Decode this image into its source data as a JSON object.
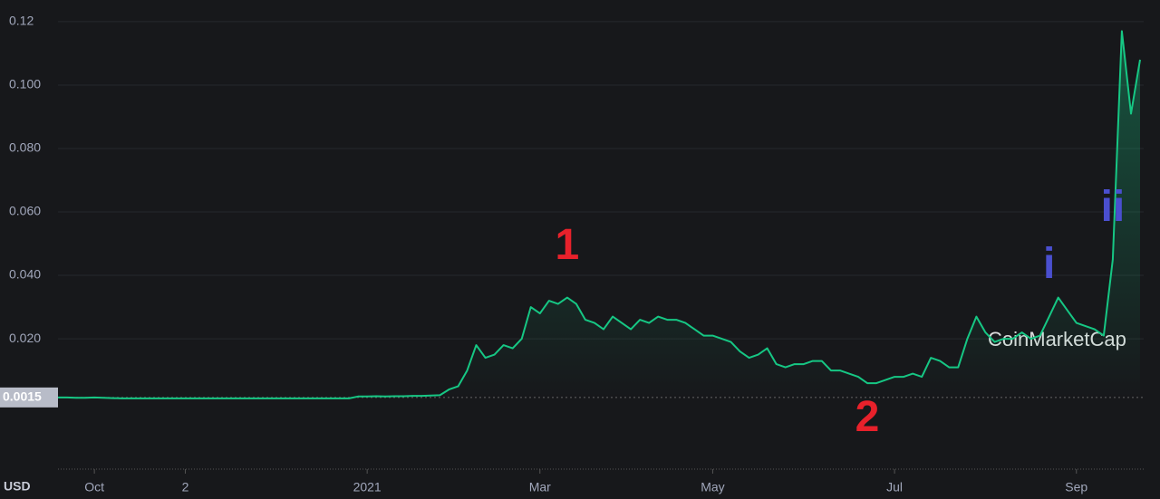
{
  "chart_data": {
    "type": "line",
    "categories": [
      null,
      null,
      null,
      null,
      "Oct",
      null,
      null,
      null,
      null,
      null,
      null,
      null,
      null,
      null,
      "2",
      null,
      null,
      null,
      null,
      null,
      null,
      null,
      null,
      null,
      null,
      null,
      null,
      null,
      null,
      null,
      null,
      null,
      null,
      null,
      "2021",
      null,
      null,
      null,
      null,
      null,
      null,
      null,
      null,
      null,
      null,
      null,
      null,
      null,
      null,
      null,
      null,
      null,
      null,
      "Mar",
      null,
      null,
      null,
      null,
      null,
      null,
      null,
      null,
      null,
      null,
      null,
      null,
      null,
      null,
      null,
      null,
      null,
      null,
      "May",
      null,
      null,
      null,
      null,
      null,
      null,
      null,
      null,
      null,
      null,
      null,
      null,
      null,
      null,
      null,
      null,
      null,
      null,
      null,
      "Jul",
      null,
      null,
      null,
      null,
      null,
      null,
      null,
      null,
      null,
      null,
      null,
      null,
      null,
      null,
      null,
      null,
      null,
      null,
      null,
      "Sep",
      null,
      null,
      null,
      null,
      null,
      null,
      null
    ],
    "values": [
      0.0015,
      0.0015,
      0.0014,
      0.0014,
      0.0015,
      0.0014,
      0.0013,
      0.0012,
      0.0012,
      0.0012,
      0.0012,
      0.0012,
      0.0012,
      0.0012,
      0.0012,
      0.0012,
      0.0012,
      0.0012,
      0.0012,
      0.0012,
      0.0012,
      0.0012,
      0.0012,
      0.0012,
      0.0012,
      0.0012,
      0.0012,
      0.0012,
      0.0012,
      0.0012,
      0.0012,
      0.0012,
      0.0012,
      0.0018,
      0.0018,
      0.0019,
      0.0018,
      0.0019,
      0.0019,
      0.002,
      0.002,
      0.0021,
      0.0022,
      0.004,
      0.005,
      0.01,
      0.018,
      0.014,
      0.015,
      0.018,
      0.017,
      0.02,
      0.03,
      0.028,
      0.032,
      0.031,
      0.033,
      0.031,
      0.026,
      0.025,
      0.023,
      0.027,
      0.025,
      0.023,
      0.026,
      0.025,
      0.027,
      0.026,
      0.026,
      0.025,
      0.023,
      0.021,
      0.021,
      0.02,
      0.019,
      0.016,
      0.014,
      0.015,
      0.017,
      0.012,
      0.011,
      0.012,
      0.012,
      0.013,
      0.013,
      0.01,
      0.01,
      0.009,
      0.008,
      0.006,
      0.006,
      0.007,
      0.008,
      0.008,
      0.009,
      0.008,
      0.014,
      0.013,
      0.011,
      0.011,
      0.02,
      0.027,
      0.022,
      0.019,
      0.02,
      0.02,
      0.022,
      0.02,
      0.021,
      0.027,
      0.033,
      0.029,
      0.025,
      0.024,
      0.023,
      0.021,
      0.045,
      0.117,
      0.091,
      0.108
    ],
    "color": "#16c784",
    "ylim": [
      -0.0211,
      0.1254
    ],
    "yticks": [
      {
        "value": 0.02,
        "label": "0.020"
      },
      {
        "value": 0.04,
        "label": "0.040"
      },
      {
        "value": 0.06,
        "label": "0.060"
      },
      {
        "value": 0.08,
        "label": "0.080"
      },
      {
        "value": 0.1,
        "label": "0.100"
      },
      0.12
    ],
    "grid": true,
    "reference_line": {
      "value": 0.0015,
      "label": "0.0015"
    },
    "currency": "USD",
    "watermark": "CoinMarketCap",
    "annotations": [
      {
        "text": "1",
        "color": "#e8212b",
        "category": 56
      },
      {
        "text": "2",
        "color": "#e8212b",
        "category": 89
      },
      {
        "text": "i",
        "color": "#4a4fcf",
        "category": 109
      },
      {
        "text": "ii",
        "color": "#4a4fcf",
        "category": 116
      }
    ]
  }
}
